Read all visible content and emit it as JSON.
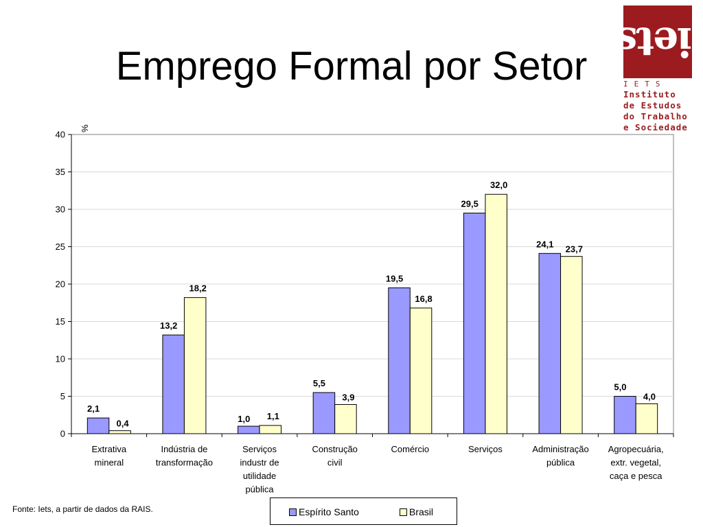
{
  "title": "Emprego Formal por Setor",
  "logo": {
    "word": "iets",
    "abbr": "IETS",
    "lines": [
      "Instituto",
      "de Estudos",
      "do Trabalho",
      "e Sociedade"
    ]
  },
  "source_note": "Fonte: Iets, a partir de dados da RAIS.",
  "colors": {
    "espirito_santo": "#9999ff",
    "brasil": "#ffffcc",
    "logo_red": "#9b1b1f"
  },
  "chart_data": {
    "type": "bar",
    "ylabel": "%",
    "ylim": [
      0,
      40
    ],
    "yticks": [
      0,
      5,
      10,
      15,
      20,
      25,
      30,
      35,
      40
    ],
    "grid": true,
    "legend_position": "bottom",
    "categories": [
      [
        "Extrativa",
        "mineral"
      ],
      [
        "Indústria de",
        "transformação"
      ],
      [
        "Serviços",
        "industr de",
        "utilidade",
        "pública"
      ],
      [
        "Construção",
        "civil"
      ],
      [
        "Comércio"
      ],
      [
        "Serviços"
      ],
      [
        "Administração",
        "pública"
      ],
      [
        "Agropecuária,",
        "extr. vegetal,",
        "caça e pesca"
      ]
    ],
    "series": [
      {
        "name": "Espírito Santo",
        "color": "#9999ff",
        "values": [
          2.1,
          13.2,
          1.0,
          5.5,
          19.5,
          29.5,
          24.1,
          5.0
        ],
        "labels": [
          "2,1",
          "13,2",
          "1,0",
          "5,5",
          "19,5",
          "29,5",
          "24,1",
          "5,0"
        ]
      },
      {
        "name": "Brasil",
        "color": "#ffffcc",
        "values": [
          0.4,
          18.2,
          1.1,
          3.9,
          16.8,
          32.0,
          23.7,
          4.0
        ],
        "labels": [
          "0,4",
          "18,2",
          "1,1",
          "3,9",
          "16,8",
          "32,0",
          "23,7",
          "4,0"
        ]
      }
    ]
  }
}
